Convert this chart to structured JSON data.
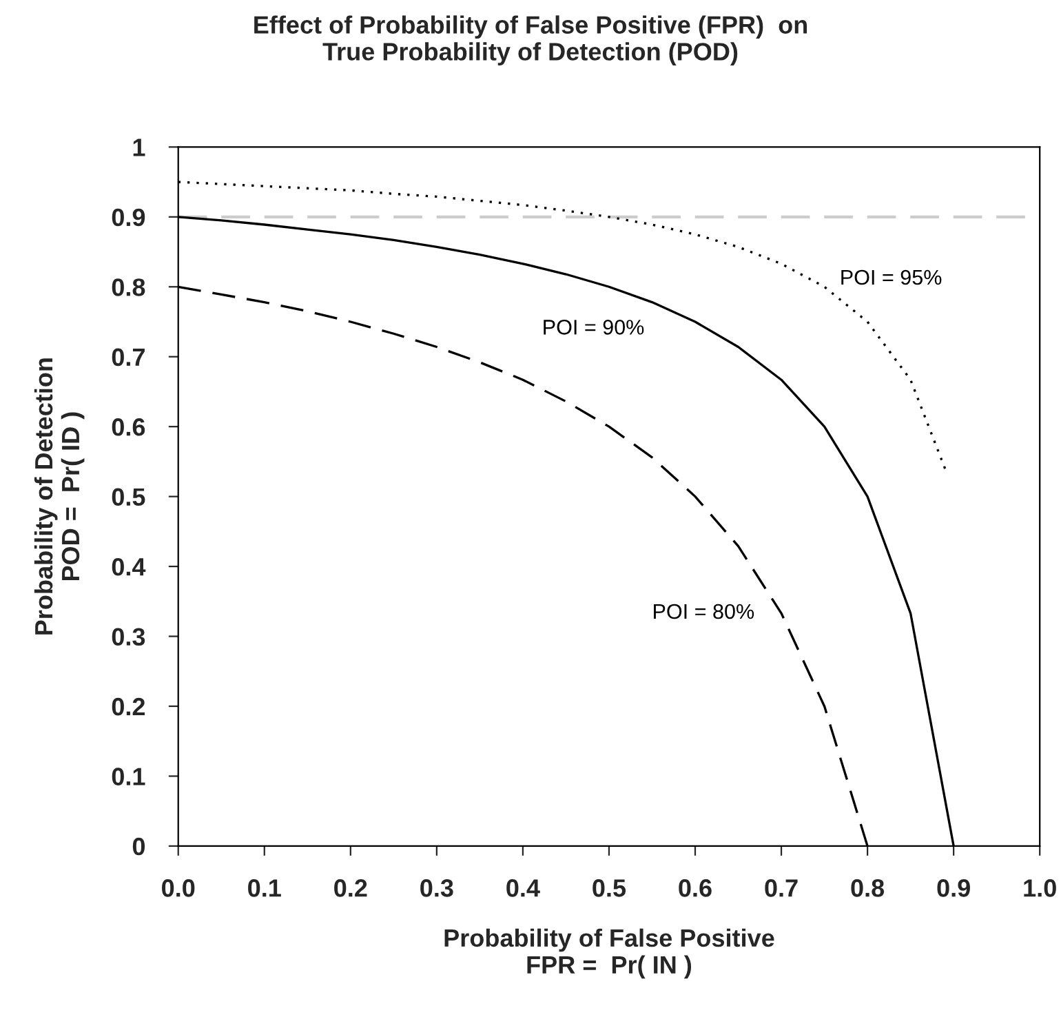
{
  "chart_data": {
    "type": "line",
    "title": "Effect of Probability of False Positive (FPR)  on\nTrue Probability of Detection (POD)",
    "xlabel": "Probability of False Positive\nFPR =  Pr( IN )",
    "ylabel": "Probability of Detection\nPOD =  Pr( ID )",
    "series": [
      {
        "x": [
          0,
          0.05,
          0.1,
          0.15,
          0.2,
          0.25,
          0.3,
          0.35,
          0.4,
          0.45,
          0.5,
          0.55,
          0.6,
          0.65,
          0.7,
          0.75,
          0.8,
          0.85,
          0.89
        ],
        "values": [
          0.95,
          0.947,
          0.944,
          0.941,
          0.938,
          0.933,
          0.929,
          0.923,
          0.917,
          0.909,
          0.9,
          0.889,
          0.875,
          0.857,
          0.833,
          0.8,
          0.75,
          0.667,
          0.54
        ],
        "color": "#000000",
        "line_style": "dotted",
        "name": "POI = 95%"
      },
      {
        "x": [
          0,
          0.05,
          0.1,
          0.15,
          0.2,
          0.25,
          0.3,
          0.35,
          0.4,
          0.45,
          0.5,
          0.55,
          0.6,
          0.65,
          0.7,
          0.75,
          0.8,
          0.85,
          0.9
        ],
        "values": [
          0.9,
          0.895,
          0.889,
          0.882,
          0.875,
          0.867,
          0.857,
          0.846,
          0.833,
          0.818,
          0.8,
          0.778,
          0.75,
          0.714,
          0.667,
          0.6,
          0.5,
          0.333,
          0
        ],
        "color": "#000000",
        "line_style": "solid",
        "name": "POI = 90%"
      },
      {
        "x": [
          0,
          0.05,
          0.1,
          0.15,
          0.2,
          0.25,
          0.3,
          0.35,
          0.4,
          0.45,
          0.5,
          0.55,
          0.6,
          0.65,
          0.7,
          0.75,
          0.8
        ],
        "values": [
          0.8,
          0.789,
          0.778,
          0.765,
          0.75,
          0.733,
          0.714,
          0.692,
          0.667,
          0.636,
          0.6,
          0.556,
          0.5,
          0.429,
          0.333,
          0.2,
          0
        ],
        "color": "#000000",
        "line_style": "dashed",
        "name": "POI = 80%"
      }
    ],
    "ref_lines": [
      {
        "axis": "y",
        "value": 0.9,
        "color": "#cccccc",
        "line_style": "dashed"
      }
    ],
    "xlim": [
      0,
      1
    ],
    "ylim": [
      0,
      1
    ],
    "xticks": [
      {
        "value": 0,
        "label": "0.0"
      },
      0.1,
      0.2,
      0.3,
      0.4,
      0.5,
      0.6,
      0.7,
      0.8,
      0.9,
      {
        "value": 1,
        "label": "1.0"
      }
    ],
    "yticks": [
      0,
      0.1,
      0.2,
      0.3,
      0.4,
      0.5,
      0.6,
      0.7,
      0.8,
      0.9,
      1
    ],
    "grid": false,
    "legend": false
  }
}
